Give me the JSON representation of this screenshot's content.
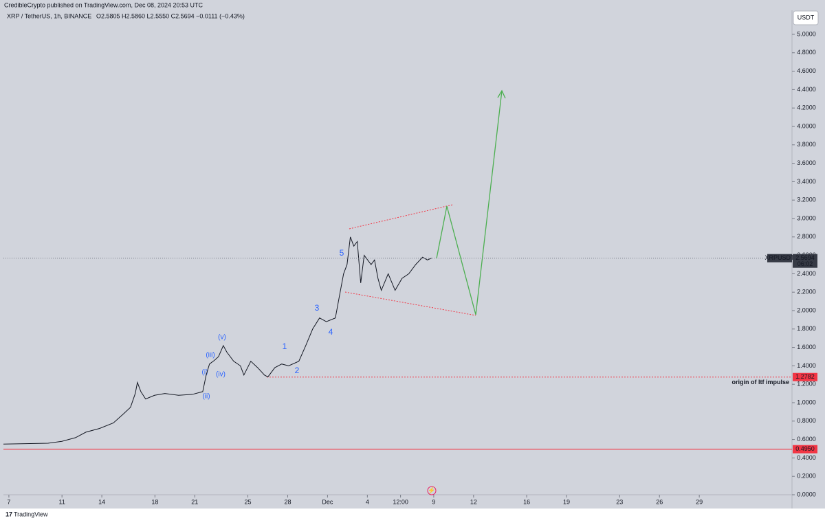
{
  "header": {
    "publisher": "CredibleCrypto published on TradingView.com, Dec 08, 2024 20:53 UTC",
    "brand": "TradingView"
  },
  "chart_data": {
    "type": "line",
    "title": "XRP / TetherUS, 1h, BINANCE",
    "ohlc": "O2.5805  H2.5860  L2.5550  C2.5694  −0.0111 (−0.43%)",
    "currency": "USDT",
    "color": "#131722",
    "x": [
      6.59,
      9.95,
      10.99,
      12.02,
      12.8,
      13.83,
      14.87,
      15.64,
      16.16,
      16.52,
      16.68,
      16.94,
      17.3,
      17.97,
      18.75,
      19.78,
      20.82,
      21.6,
      21.86,
      22.11,
      22.48,
      22.79,
      23.15,
      23.41,
      23.93,
      24.44,
      24.7,
      25.22,
      25.74,
      26.25,
      26.51,
      27.03,
      27.55,
      28.07,
      28.84,
      29.36,
      29.88,
      30.4,
      30.91,
      31.59,
      31.95,
      32.21,
      32.47,
      32.72,
      32.98,
      33.24,
      33.5,
      33.76,
      34.28,
      34.54,
      34.8,
      35.05,
      35.57,
      36.09,
      36.61,
      37.12,
      37.64,
      38.16,
      38.52,
      38.83
    ],
    "values": [
      0.55,
      0.56,
      0.58,
      0.62,
      0.68,
      0.72,
      0.78,
      0.88,
      0.95,
      1.1,
      1.22,
      1.12,
      1.04,
      1.08,
      1.1,
      1.08,
      1.09,
      1.12,
      1.3,
      1.42,
      1.46,
      1.5,
      1.62,
      1.55,
      1.45,
      1.4,
      1.3,
      1.45,
      1.38,
      1.3,
      1.28,
      1.38,
      1.42,
      1.4,
      1.45,
      1.62,
      1.8,
      1.92,
      1.88,
      1.92,
      2.2,
      2.4,
      2.5,
      2.8,
      2.7,
      2.75,
      2.3,
      2.6,
      2.5,
      2.55,
      2.35,
      2.22,
      2.4,
      2.22,
      2.35,
      2.4,
      2.5,
      2.58,
      2.55,
      2.57
    ],
    "xlim": [
      6.59,
      65.88
    ],
    "xticks": [
      {
        "value": 7,
        "label": "7"
      },
      {
        "value": 11,
        "label": "11"
      },
      {
        "value": 14,
        "label": "14"
      },
      {
        "value": 18,
        "label": "18"
      },
      {
        "value": 21,
        "label": "21"
      },
      {
        "value": 25,
        "label": "25"
      },
      {
        "value": 28,
        "label": "28"
      },
      {
        "value": 31,
        "label": "Dec"
      },
      {
        "value": 34,
        "label": "4"
      },
      {
        "value": 36.5,
        "label": "12:00"
      },
      {
        "value": 39,
        "label": "9"
      },
      {
        "value": 42,
        "label": "12"
      },
      {
        "value": 46,
        "label": "16"
      },
      {
        "value": 49,
        "label": "19"
      },
      {
        "value": 53,
        "label": "23"
      },
      {
        "value": 56,
        "label": "26"
      },
      {
        "value": 59,
        "label": "29"
      }
    ],
    "ylim": [
      0,
      5.261
    ],
    "yticks": [
      {
        "value": 0,
        "label": "0.0000"
      },
      {
        "value": 0.2,
        "label": "0.2000"
      },
      {
        "value": 0.4,
        "label": "0.4000"
      },
      {
        "value": 0.6,
        "label": "0.6000"
      },
      {
        "value": 0.8,
        "label": "0.8000"
      },
      {
        "value": 1,
        "label": "1.0000"
      },
      {
        "value": 1.2,
        "label": "1.2000"
      },
      {
        "value": 1.4,
        "label": "1.4000"
      },
      {
        "value": 1.6,
        "label": "1.6000"
      },
      {
        "value": 1.8,
        "label": "1.8000"
      },
      {
        "value": 2,
        "label": "2.0000"
      },
      {
        "value": 2.2,
        "label": "2.2000"
      },
      {
        "value": 2.4,
        "label": "2.4000"
      },
      {
        "value": 2.6,
        "label": "2.6000"
      },
      {
        "value": 2.8,
        "label": "2.8000"
      },
      {
        "value": 3,
        "label": "3.0000"
      },
      {
        "value": 3.2,
        "label": "3.2000"
      },
      {
        "value": 3.4,
        "label": "3.4000"
      },
      {
        "value": 3.6,
        "label": "3.6000"
      },
      {
        "value": 3.8,
        "label": "3.8000"
      },
      {
        "value": 4,
        "label": "4.0000"
      },
      {
        "value": 4.2,
        "label": "4.2000"
      },
      {
        "value": 4.4,
        "label": "4.4000"
      },
      {
        "value": 4.6,
        "label": "4.6000"
      },
      {
        "value": 4.8,
        "label": "4.8000"
      },
      {
        "value": 5,
        "label": "5.0000"
      }
    ],
    "last_price": {
      "name": "XRPUSDT",
      "value": 2.5694,
      "countdown": "06:02"
    },
    "levels": [
      {
        "value": 1.2782,
        "color": "#f23645",
        "annotation": "origin of ltf impulse"
      },
      {
        "value": {
          "value": 0.495,
          "label": "0.4950"
        },
        "color": "#f23645"
      }
    ],
    "wave_labels": [
      "(i)",
      "(ii)",
      "(iii)",
      "(iv)",
      "(v)",
      "1",
      "2",
      "3",
      "4",
      "5"
    ]
  }
}
